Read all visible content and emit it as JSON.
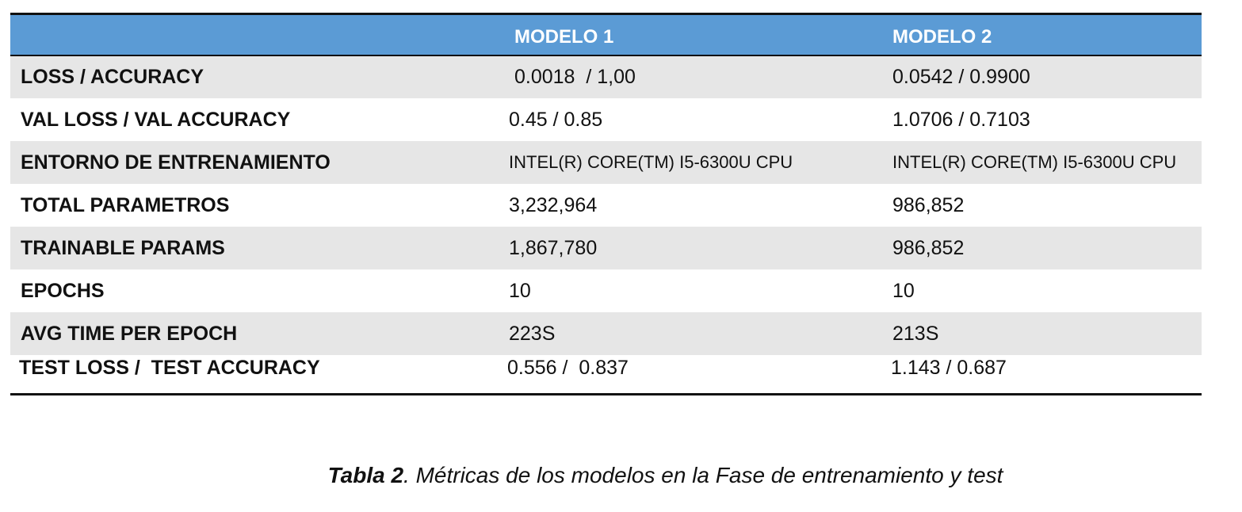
{
  "table": {
    "headers": [
      "",
      "MODELO 1",
      "MODELO 2"
    ],
    "rows": [
      {
        "label": "LOSS / ACCURACY",
        "modelo1": "0.0018  / 1,00",
        "modelo2": "0.0542 / 0.9900"
      },
      {
        "label": "VAL LOSS / VAL ACCURACY",
        "modelo1": "0.45 / 0.85",
        "modelo2": "1.0706 / 0.7103"
      },
      {
        "label": "ENTORNO DE ENTRENAMIENTO",
        "modelo1": "INTEL(R) CORE(TM) I5-6300U CPU",
        "modelo2": "INTEL(R) CORE(TM) I5-6300U CPU"
      },
      {
        "label": "TOTAL PARAMETROS",
        "modelo1": "3,232,964",
        "modelo2": "986,852"
      },
      {
        "label": "TRAINABLE PARAMS",
        "modelo1": "1,867,780",
        "modelo2": "986,852"
      },
      {
        "label": "EPOCHS",
        "modelo1": "10",
        "modelo2": "10"
      },
      {
        "label": "AVG TIME PER EPOCH",
        "modelo1": "223S",
        "modelo2": "213S"
      },
      {
        "label": "TEST LOSS /  TEST ACCURACY",
        "modelo1": "0.556 /  0.837",
        "modelo2": "1.143 / 0.687"
      }
    ]
  },
  "caption": {
    "label": "Tabla 2",
    "text": ". Métricas de los modelos en la Fase de entrenamiento y test"
  },
  "colors": {
    "header_bg": "#5b9bd5",
    "header_text": "#ffffff",
    "row_shade": "#e6e6e6",
    "rule": "#111111"
  }
}
